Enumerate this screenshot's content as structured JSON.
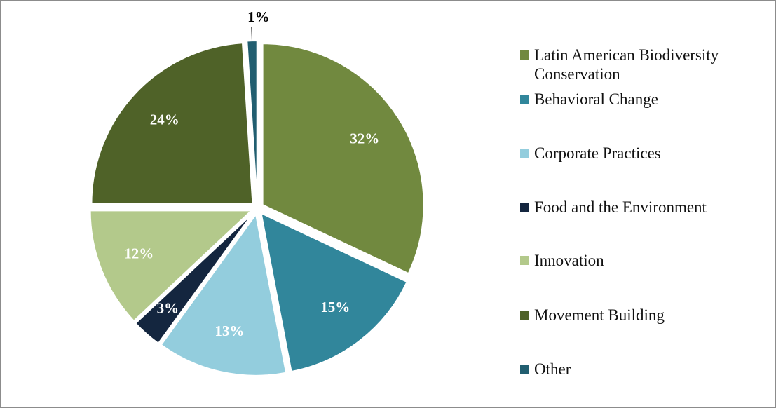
{
  "chart_data": {
    "type": "pie",
    "categories": [
      "Latin American Biodiversity Conservation",
      "Behavioral Change",
      "Corporate Practices",
      "Food and the Environment",
      "Innovation",
      "Movement Building",
      "Other"
    ],
    "values": [
      32,
      15,
      13,
      3,
      12,
      24,
      1
    ],
    "value_labels": [
      "32%",
      "15%",
      "13%",
      "3%",
      "12%",
      "24%",
      "1%"
    ],
    "colors": [
      "#71893f",
      "#31869b",
      "#93cddd",
      "#14263f",
      "#b3c98b",
      "#4f6228",
      "#215e70"
    ],
    "legend": "right"
  }
}
